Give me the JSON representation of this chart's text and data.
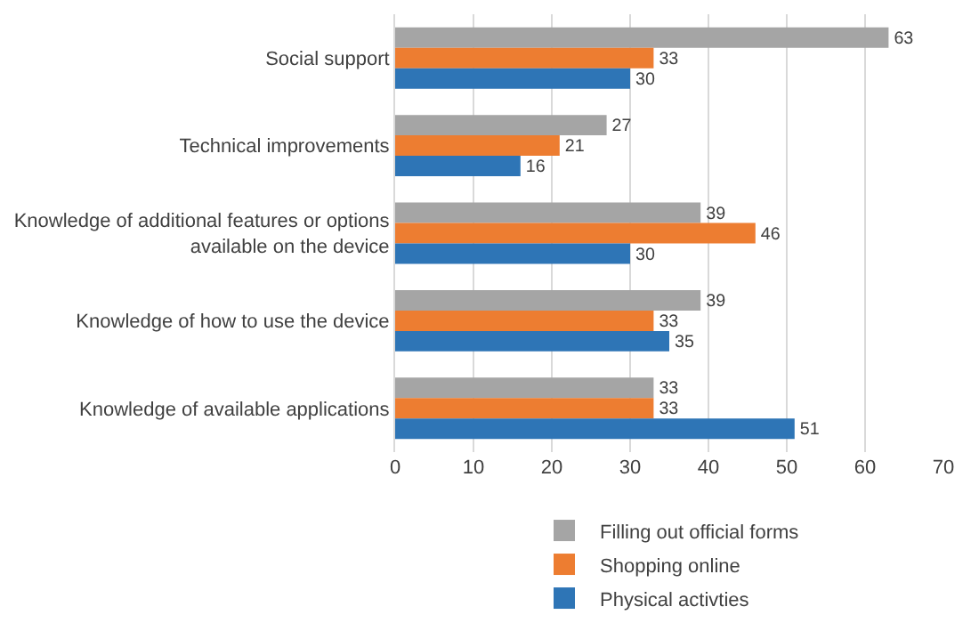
{
  "chart_data": {
    "type": "bar",
    "orientation": "horizontal",
    "categories": [
      "Social support",
      "Technical improvements",
      "Knowledge of additional features or options available on the device",
      "Knowledge of how to use the device",
      "Knowledge of available applications"
    ],
    "series": [
      {
        "name": "Filling out official forms",
        "color": "#a5a5a5",
        "values": [
          63,
          27,
          39,
          39,
          33
        ]
      },
      {
        "name": "Shopping online",
        "color": "#ed7d31",
        "values": [
          33,
          21,
          46,
          33,
          33
        ]
      },
      {
        "name": "Physical activties",
        "color": "#2e75b6",
        "values": [
          30,
          16,
          30,
          35,
          51
        ]
      }
    ],
    "xlim": [
      0,
      70
    ],
    "xticks": [
      0,
      10,
      20,
      30,
      40,
      50,
      60,
      70
    ],
    "grid": "x",
    "legend": "bottom",
    "data_labels": true
  }
}
